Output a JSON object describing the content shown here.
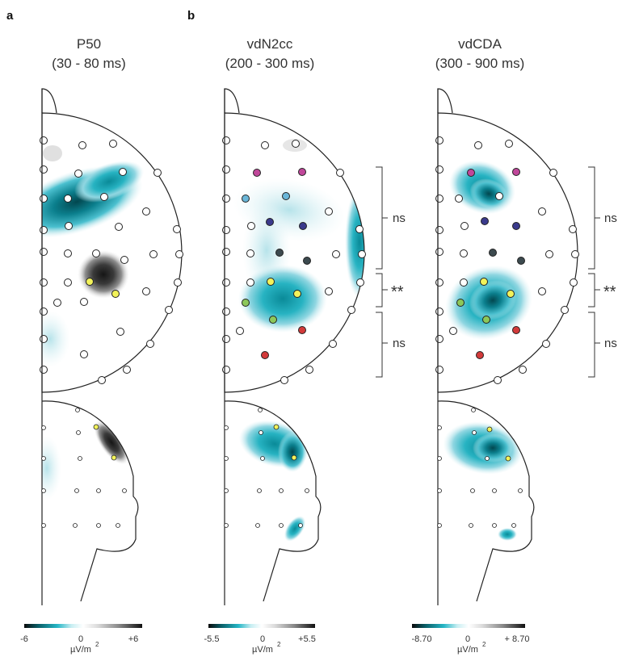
{
  "panel_letters": [
    "a",
    "b"
  ],
  "panels": [
    {
      "title_line1": "P50",
      "title_line2": "(30 - 80 ms)",
      "cb_min": "-6",
      "cb_zero": "0",
      "cb_max": "+6",
      "unit": "µV/m",
      "unit_exp": "2"
    },
    {
      "title_line1": "vdN2cc",
      "title_line2": "(200 - 300 ms)",
      "cb_min": "-5.5",
      "cb_zero": "0",
      "cb_max": "+5.5",
      "unit": "µV/m",
      "unit_exp": "2"
    },
    {
      "title_line1": "vdCDA",
      "title_line2": "(300 - 900 ms)",
      "cb_min": "-8.70",
      "cb_zero": "0",
      "cb_max": "+ 8.70",
      "unit": "µV/m",
      "unit_exp": "2"
    }
  ],
  "significance": [
    {
      "label_b": "ns",
      "label_c": "ns"
    },
    {
      "label_b": "**",
      "label_c": "**"
    },
    {
      "label_b": "ns",
      "label_c": "ns"
    }
  ],
  "colors": {
    "teal_dark": "#004d52",
    "teal": "#1aa6b7",
    "teal_light": "#bde7ee",
    "gray_dark": "#222222",
    "electrode_magenta": "#c0479a",
    "electrode_lightblue": "#6ab6d8",
    "electrode_navy": "#3a3a8c",
    "electrode_darkgray": "#3c4a4f",
    "electrode_yellow": "#f2f25a",
    "electrode_green": "#8cc85a",
    "electrode_red": "#d23a3a"
  }
}
